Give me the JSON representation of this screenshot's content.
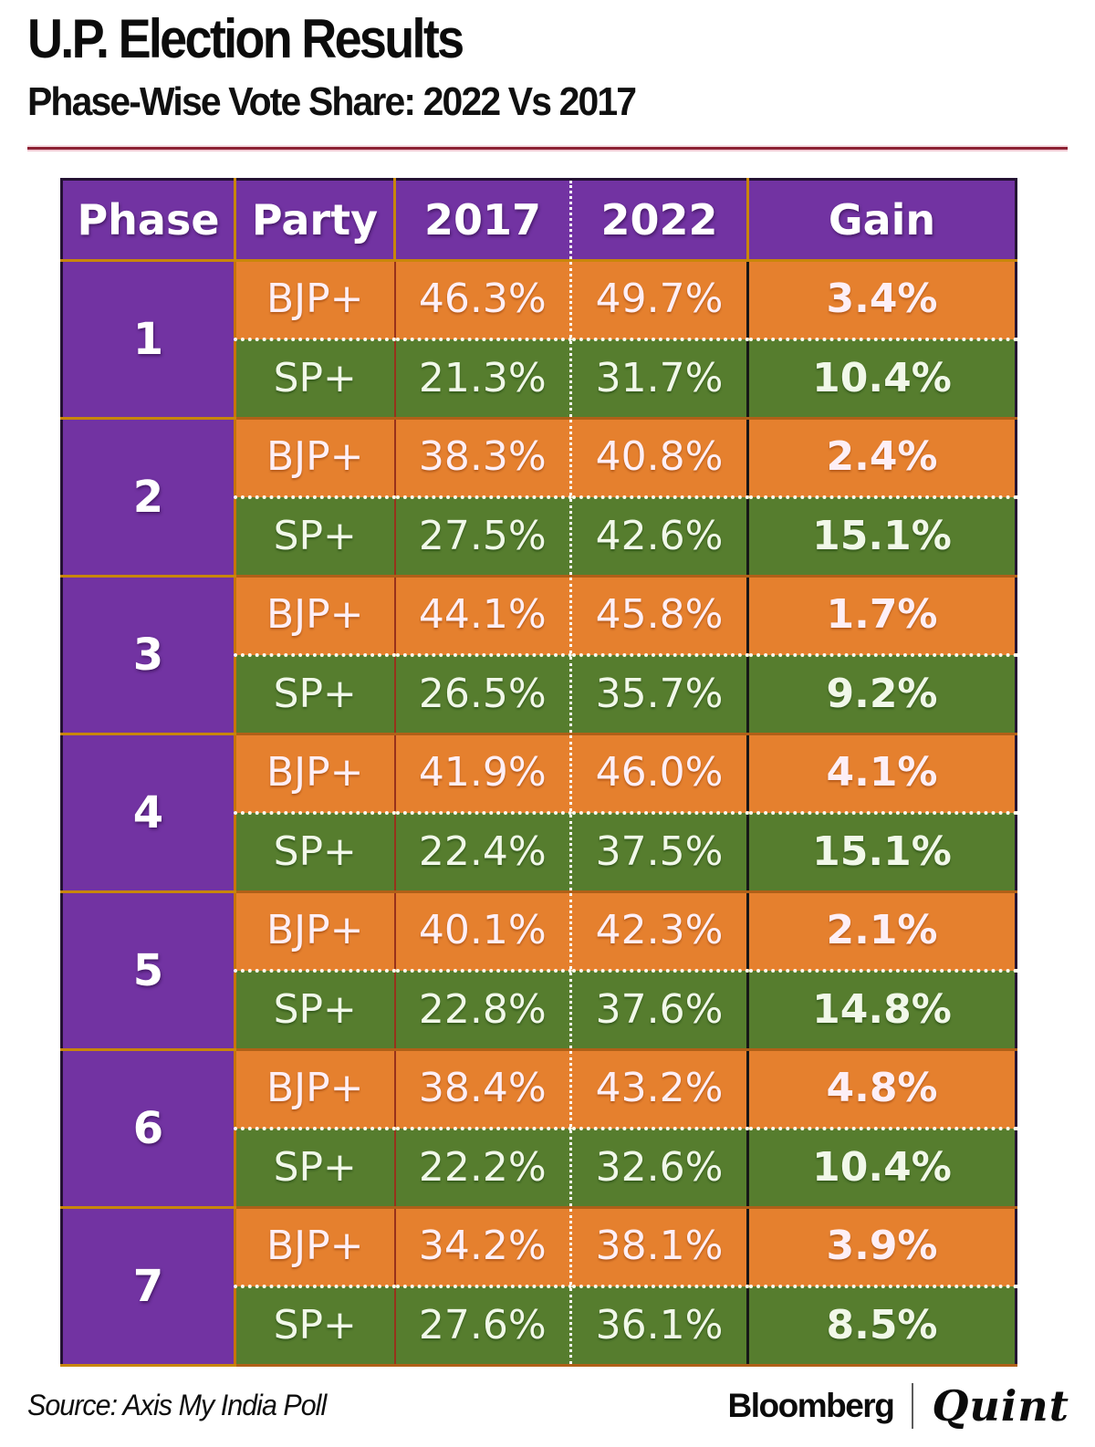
{
  "header": {
    "title": "U.P. Election Results",
    "subtitle": "Phase-Wise Vote Share: 2022 Vs 2017"
  },
  "table": {
    "columns": [
      "Phase",
      "Party",
      "2017",
      "2022",
      "Gain"
    ],
    "phases": [
      {
        "phase": "1",
        "rows": [
          {
            "party": "BJP+",
            "v2017": "46.3%",
            "v2022": "49.7%",
            "gain": "3.4%"
          },
          {
            "party": "SP+",
            "v2017": "21.3%",
            "v2022": "31.7%",
            "gain": "10.4%"
          }
        ]
      },
      {
        "phase": "2",
        "rows": [
          {
            "party": "BJP+",
            "v2017": "38.3%",
            "v2022": "40.8%",
            "gain": "2.4%"
          },
          {
            "party": "SP+",
            "v2017": "27.5%",
            "v2022": "42.6%",
            "gain": "15.1%"
          }
        ]
      },
      {
        "phase": "3",
        "rows": [
          {
            "party": "BJP+",
            "v2017": "44.1%",
            "v2022": "45.8%",
            "gain": "1.7%"
          },
          {
            "party": "SP+",
            "v2017": "26.5%",
            "v2022": "35.7%",
            "gain": "9.2%"
          }
        ]
      },
      {
        "phase": "4",
        "rows": [
          {
            "party": "BJP+",
            "v2017": "41.9%",
            "v2022": "46.0%",
            "gain": "4.1%"
          },
          {
            "party": "SP+",
            "v2017": "22.4%",
            "v2022": "37.5%",
            "gain": "15.1%"
          }
        ]
      },
      {
        "phase": "5",
        "rows": [
          {
            "party": "BJP+",
            "v2017": "40.1%",
            "v2022": "42.3%",
            "gain": "2.1%"
          },
          {
            "party": "SP+",
            "v2017": "22.8%",
            "v2022": "37.6%",
            "gain": "14.8%"
          }
        ]
      },
      {
        "phase": "6",
        "rows": [
          {
            "party": "BJP+",
            "v2017": "38.4%",
            "v2022": "43.2%",
            "gain": "4.8%"
          },
          {
            "party": "SP+",
            "v2017": "22.2%",
            "v2022": "32.6%",
            "gain": "10.4%"
          }
        ]
      },
      {
        "phase": "7",
        "rows": [
          {
            "party": "BJP+",
            "v2017": "34.2%",
            "v2022": "38.1%",
            "gain": "3.9%"
          },
          {
            "party": "SP+",
            "v2017": "27.6%",
            "v2022": "36.1%",
            "gain": "8.5%"
          }
        ]
      }
    ]
  },
  "footer": {
    "source": "Source: Axis My India Poll",
    "brand": {
      "bloomberg": "Bloomberg",
      "quint": "Quint"
    }
  },
  "colors": {
    "purple": "#7233a2",
    "orange": "#e5802e",
    "green": "#567d2e",
    "gold_border": "#c8860b",
    "gain_divider_black": "#171717",
    "rule_red": "#8c2133",
    "header_text": "#ffffff",
    "bjp_row_text": "#fdeff6",
    "sp_row_text": "#f1f8e9"
  },
  "chart_data": {
    "type": "table",
    "title": "U.P. Election Results",
    "subtitle": "Phase-Wise Vote Share: 2022 Vs 2017",
    "columns": [
      "Phase",
      "Party",
      "2017",
      "2022",
      "Gain"
    ],
    "units": "%",
    "rows": [
      [
        1,
        "BJP+",
        46.3,
        49.7,
        3.4
      ],
      [
        1,
        "SP+",
        21.3,
        31.7,
        10.4
      ],
      [
        2,
        "BJP+",
        38.3,
        40.8,
        2.4
      ],
      [
        2,
        "SP+",
        27.5,
        42.6,
        15.1
      ],
      [
        3,
        "BJP+",
        44.1,
        45.8,
        1.7
      ],
      [
        3,
        "SP+",
        26.5,
        35.7,
        9.2
      ],
      [
        4,
        "BJP+",
        41.9,
        46.0,
        4.1
      ],
      [
        4,
        "SP+",
        22.4,
        37.5,
        15.1
      ],
      [
        5,
        "BJP+",
        40.1,
        42.3,
        2.1
      ],
      [
        5,
        "SP+",
        22.8,
        37.6,
        14.8
      ],
      [
        6,
        "BJP+",
        38.4,
        43.2,
        4.8
      ],
      [
        6,
        "SP+",
        22.2,
        32.6,
        10.4
      ],
      [
        7,
        "BJP+",
        34.2,
        38.1,
        3.9
      ],
      [
        7,
        "SP+",
        27.6,
        36.1,
        8.5
      ]
    ],
    "source": "Axis My India Poll"
  }
}
